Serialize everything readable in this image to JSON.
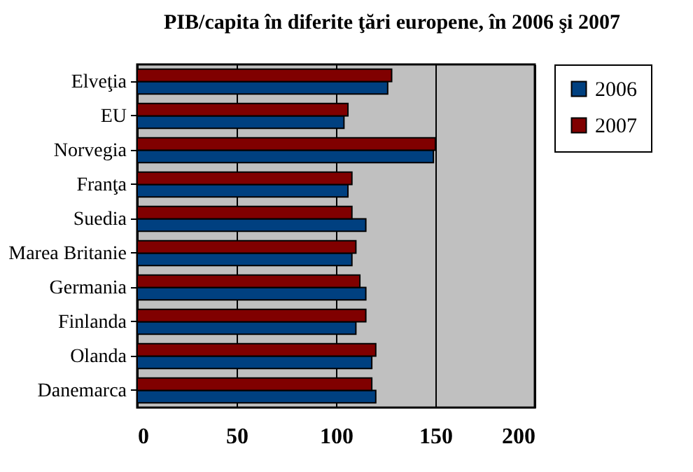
{
  "chart_data": {
    "type": "bar",
    "orientation": "horizontal",
    "title": "PIB/capita în diferite ţări europene, în 2006 şi 2007",
    "categories": [
      "Elveţia",
      "EU",
      "Norvegia",
      "Franţa",
      "Suedia",
      "Marea Britanie",
      "Germania",
      "Finlanda",
      "Olanda",
      "Danemarca"
    ],
    "series": [
      {
        "name": "2006",
        "color": "#004080",
        "values": [
          126,
          104,
          149,
          106,
          115,
          108,
          115,
          110,
          118,
          120
        ]
      },
      {
        "name": "2007",
        "color": "#800000",
        "values": [
          128,
          106,
          150,
          108,
          108,
          110,
          112,
          115,
          120,
          118
        ]
      }
    ],
    "xlim": [
      0,
      200
    ],
    "xticks": [
      0,
      50,
      100,
      150,
      200
    ],
    "grid": "x",
    "legend": "right"
  }
}
